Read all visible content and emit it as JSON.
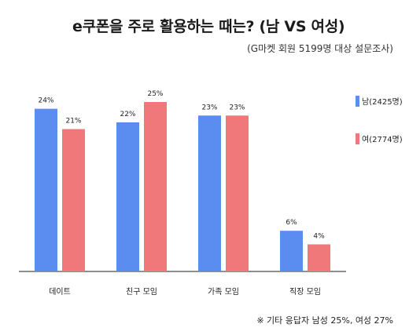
{
  "title": "e쿠폰을 주로 활용하는 때는? (남 VS 여성)",
  "subtitle": "(G마켓 회원 5199명 대상 설문조사)",
  "note": "※ 기타 응답자 남성 25%, 여성 27%",
  "colors": {
    "male": "#5b8cf0",
    "female": "#f0787a",
    "axis": "#222222"
  },
  "chart_data": {
    "type": "bar",
    "title": "e쿠폰을 주로 활용하는 때는? (남 VS 여성)",
    "categories": [
      "데이트",
      "친구 모임",
      "가족 모임",
      "직장 모임"
    ],
    "series": [
      {
        "name": "남(2425명)",
        "values": [
          24,
          22,
          23,
          6
        ],
        "labels": [
          "24%",
          "22%",
          "23%",
          "6%"
        ]
      },
      {
        "name": "여(2774명)",
        "values": [
          21,
          25,
          23,
          4
        ],
        "labels": [
          "21%",
          "25%",
          "23%",
          "4%"
        ]
      }
    ],
    "ylim": [
      0,
      25
    ],
    "grid": false,
    "legend": "right"
  }
}
